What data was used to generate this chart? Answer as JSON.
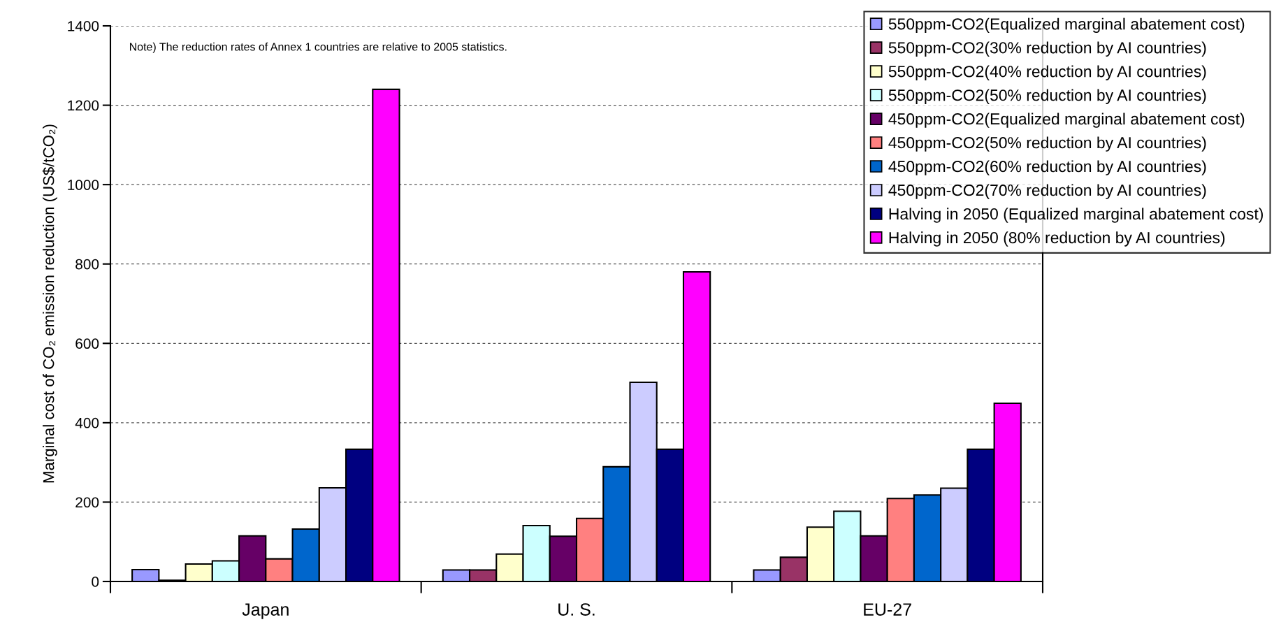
{
  "chart_data": {
    "type": "bar",
    "ylabel": "Marginal cost of CO₂ emission reduction (US$/tCO₂)",
    "categories": [
      "Japan",
      "U. S.",
      "EU-27"
    ],
    "series": [
      {
        "name": "550ppm-CO2(Equalized marginal abatement cost)",
        "color": "#9999ff",
        "values": [
          30,
          29,
          29
        ]
      },
      {
        "name": "550ppm-CO2(30% reduction by AI countries)",
        "color": "#993366",
        "values": [
          3,
          29,
          61
        ]
      },
      {
        "name": "550ppm-CO2(40% reduction by AI countries)",
        "color": "#ffffcc",
        "values": [
          44,
          69,
          137
        ]
      },
      {
        "name": "550ppm-CO2(50% reduction by AI countries)",
        "color": "#ccffff",
        "values": [
          52,
          141,
          177
        ]
      },
      {
        "name": "450ppm-CO2(Equalized marginal abatement cost)",
        "color": "#660066",
        "values": [
          115,
          114,
          115
        ]
      },
      {
        "name": "450ppm-CO2(50% reduction by AI countries)",
        "color": "#ff8080",
        "values": [
          57,
          159,
          209
        ]
      },
      {
        "name": "450ppm-CO2(60% reduction by AI countries)",
        "color": "#0066cc",
        "values": [
          132,
          289,
          218
        ]
      },
      {
        "name": "450ppm-CO2(70% reduction by AI countries)",
        "color": "#ccccff",
        "values": [
          236,
          502,
          235
        ]
      },
      {
        "name": "Halving in 2050 (Equalized marginal abatement cost)",
        "color": "#000080",
        "values": [
          333,
          333,
          333
        ]
      },
      {
        "name": "Halving in 2050 (80% reduction by AI countries)",
        "color": "#ff00ff",
        "values": [
          1240,
          780,
          449
        ]
      }
    ],
    "ylim": [
      0,
      1400
    ],
    "yticks": [
      0,
      200,
      400,
      600,
      800,
      1000,
      1200,
      1400
    ],
    "grid": "y",
    "legend": "top right",
    "annotations": [
      "Note) The reduction rates of Annex 1 countries are relative to 2005 statistics."
    ]
  }
}
